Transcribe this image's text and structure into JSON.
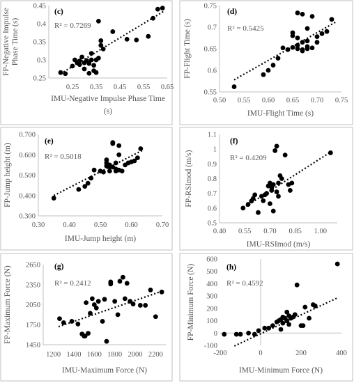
{
  "colors": {
    "point": "#000000",
    "trendline": "#000000",
    "axis": "#bfbfbf",
    "text": "#555555"
  },
  "chart_data": [
    {
      "type": "scatter",
      "panel_label": "(c)",
      "r_squared_label": "R² = 0.7269",
      "xlabel": "IMU-Negative Impulse Phase Time (s)",
      "ylabel": "FP-Negative Impulse Phase Time (s)",
      "xlim": [
        0.15,
        0.65
      ],
      "ylim": [
        0.25,
        0.45
      ],
      "xticks": [
        "0.25",
        "0.35",
        "0.45",
        "0.55",
        "0.65"
      ],
      "xtick_values": [
        0.25,
        0.35,
        0.45,
        0.55,
        0.65
      ],
      "yticks": [
        "0.25",
        "0.3",
        "0.35",
        "0.4",
        "0.45"
      ],
      "ytick_values": [
        0.25,
        0.3,
        0.35,
        0.4,
        0.45
      ],
      "trendline": [
        [
          0.2,
          0.262
        ],
        [
          0.64,
          0.436
        ]
      ],
      "legend": "none",
      "grid": false,
      "x": [
        0.2,
        0.22,
        0.25,
        0.26,
        0.27,
        0.28,
        0.28,
        0.29,
        0.3,
        0.3,
        0.31,
        0.32,
        0.32,
        0.33,
        0.33,
        0.34,
        0.34,
        0.35,
        0.35,
        0.36,
        0.36,
        0.37,
        0.37,
        0.38,
        0.42,
        0.48,
        0.52,
        0.57,
        0.59,
        0.61,
        0.63
      ],
      "y": [
        0.265,
        0.262,
        0.283,
        0.3,
        0.292,
        0.287,
        0.297,
        0.308,
        0.292,
        0.275,
        0.298,
        0.29,
        0.263,
        0.3,
        0.318,
        0.285,
        0.27,
        0.265,
        0.3,
        0.305,
        0.407,
        0.34,
        0.353,
        0.33,
        0.378,
        0.357,
        0.355,
        0.365,
        0.415,
        0.44,
        0.443
      ]
    },
    {
      "type": "scatter",
      "panel_label": "(d)",
      "r_squared_label": "R² = 0.5425",
      "xlabel": "IMU-Flight Time (s)",
      "ylabel": "FP-Flight Time (s)",
      "xlim": [
        0.5,
        0.75
      ],
      "ylim": [
        0.55,
        0.75
      ],
      "xticks": [
        "0.50",
        "0.55",
        "0.60",
        "0.65",
        "0.70",
        "0.75"
      ],
      "xtick_values": [
        0.5,
        0.55,
        0.6,
        0.65,
        0.7,
        0.75
      ],
      "yticks": [
        "0.55",
        "0.6",
        "0.65",
        "0.7",
        "0.75"
      ],
      "ytick_values": [
        0.55,
        0.6,
        0.65,
        0.7,
        0.75
      ],
      "trendline": [
        [
          0.53,
          0.578
        ],
        [
          0.74,
          0.713
        ]
      ],
      "legend": "none",
      "grid": false,
      "x": [
        0.53,
        0.59,
        0.6,
        0.61,
        0.62,
        0.63,
        0.64,
        0.65,
        0.65,
        0.65,
        0.66,
        0.66,
        0.66,
        0.67,
        0.67,
        0.67,
        0.68,
        0.68,
        0.68,
        0.69,
        0.69,
        0.7,
        0.7,
        0.71,
        0.72,
        0.73,
        0.66,
        0.67,
        0.68
      ],
      "y": [
        0.562,
        0.59,
        0.6,
        0.612,
        0.628,
        0.652,
        0.648,
        0.653,
        0.68,
        0.687,
        0.658,
        0.675,
        0.733,
        0.648,
        0.665,
        0.73,
        0.65,
        0.668,
        0.697,
        0.652,
        0.725,
        0.665,
        0.678,
        0.685,
        0.69,
        0.718,
        0.65,
        0.645,
        0.655
      ]
    },
    {
      "type": "scatter",
      "panel_label": "(e)",
      "r_squared_label": "R² = 0.5018",
      "xlabel": "IMU-Jump height (m)",
      "ylabel": "FP-Jump height (m)",
      "xlim": [
        0.3,
        0.7
      ],
      "ylim": [
        0.3,
        0.7
      ],
      "xticks": [
        "0.30",
        "0.40",
        "0.50",
        "0.60",
        "0.70"
      ],
      "xtick_values": [
        0.3,
        0.4,
        0.5,
        0.6,
        0.7
      ],
      "yticks": [
        "0.300",
        "0.400",
        "0.500",
        "0.600",
        "0.700"
      ],
      "ytick_values": [
        0.3,
        0.4,
        0.5,
        0.6,
        0.7
      ],
      "trendline": [
        [
          0.35,
          0.4
        ],
        [
          0.64,
          0.625
        ]
      ],
      "legend": "none",
      "grid": false,
      "x": [
        0.35,
        0.43,
        0.45,
        0.46,
        0.47,
        0.48,
        0.5,
        0.51,
        0.52,
        0.52,
        0.52,
        0.53,
        0.53,
        0.53,
        0.54,
        0.54,
        0.55,
        0.55,
        0.55,
        0.56,
        0.56,
        0.57,
        0.58,
        0.59,
        0.6,
        0.61,
        0.62,
        0.63,
        0.54,
        0.56
      ],
      "y": [
        0.387,
        0.43,
        0.445,
        0.46,
        0.485,
        0.525,
        0.52,
        0.515,
        0.545,
        0.575,
        0.56,
        0.52,
        0.54,
        0.55,
        0.655,
        0.66,
        0.52,
        0.53,
        0.56,
        0.6,
        0.645,
        0.52,
        0.55,
        0.56,
        0.565,
        0.57,
        0.585,
        0.63,
        0.54,
        0.525
      ]
    },
    {
      "type": "scatter",
      "panel_label": "(f)",
      "r_squared_label": "R² = 0.4209",
      "xlabel": "IMU-RSImod (m/s)",
      "ylabel": "FP-RSImod (m/s)",
      "xlim": [
        0.4,
        1.1
      ],
      "ylim": [
        0.5,
        1.1
      ],
      "xticks": [
        "0.40",
        "0.55",
        "0.70",
        "0.85",
        "1.00"
      ],
      "xtick_values": [
        0.4,
        0.55,
        0.7,
        0.85,
        1.0
      ],
      "yticks": [
        "0.5",
        "0.6",
        "0.7",
        "0.8",
        "0.9",
        "1",
        "1.1"
      ],
      "ytick_values": [
        0.5,
        0.6,
        0.7,
        0.8,
        0.9,
        1.0,
        1.1
      ],
      "trendline": [
        [
          0.54,
          0.6
        ],
        [
          1.06,
          0.98
        ]
      ],
      "legend": "none",
      "grid": false,
      "x": [
        0.54,
        0.57,
        0.59,
        0.6,
        0.61,
        0.63,
        0.65,
        0.66,
        0.67,
        0.68,
        0.69,
        0.7,
        0.7,
        0.71,
        0.72,
        0.72,
        0.73,
        0.74,
        0.74,
        0.75,
        0.76,
        0.77,
        0.79,
        0.81,
        0.82,
        0.83,
        1.06,
        0.71,
        0.75
      ],
      "y": [
        0.6,
        0.625,
        0.648,
        0.665,
        0.69,
        0.57,
        0.68,
        0.65,
        0.69,
        0.7,
        0.75,
        0.63,
        0.77,
        0.72,
        0.58,
        0.76,
        0.99,
        0.71,
        1.02,
        0.77,
        0.82,
        0.8,
        0.96,
        0.76,
        0.72,
        0.77,
        0.975,
        0.74,
        0.68
      ]
    },
    {
      "type": "scatter",
      "panel_label": "(g)",
      "r_squared_label": "R² = 0.2412",
      "xlabel": "IMU-Maximum Force (N)",
      "ylabel": "FP-Maximum Force (N)",
      "xlim": [
        1100,
        2300
      ],
      "ylim": [
        1450,
        2650
      ],
      "xticks": [
        "1200",
        "1400",
        "1600",
        "1800",
        "2000",
        "2200"
      ],
      "xtick_values": [
        1200,
        1400,
        1600,
        1800,
        2000,
        2200
      ],
      "yticks": [
        "1450",
        "1750",
        "2050",
        "2350",
        "2650"
      ],
      "ytick_values": [
        1450,
        1750,
        2050,
        2350,
        2650
      ],
      "trendline": [
        [
          1250,
          1720
        ],
        [
          2260,
          2250
        ]
      ],
      "legend": "none",
      "grid": false,
      "x": [
        1260,
        1300,
        1380,
        1440,
        1480,
        1500,
        1510,
        1520,
        1560,
        1580,
        1600,
        1640,
        1680,
        1700,
        1720,
        1760,
        1800,
        1830,
        1850,
        1880,
        1900,
        1920,
        1950,
        1980,
        2050,
        2100,
        2150,
        2200,
        2260,
        1620,
        1760,
        1540
      ],
      "y": [
        1840,
        1780,
        1800,
        1760,
        1610,
        1580,
        1580,
        2080,
        1920,
        2140,
        2050,
        2100,
        1800,
        2130,
        1500,
        2360,
        2100,
        1900,
        2400,
        2460,
        2140,
        2370,
        2100,
        2060,
        2040,
        2040,
        2270,
        1870,
        2240,
        2000,
        2390,
        1620
      ]
    },
    {
      "type": "scatter",
      "panel_label": "(h)",
      "r_squared_label": "R² = 0.4592",
      "xlabel": "IMU-Minimum Force (N)",
      "ylabel": "FP-Minimum Force (N)",
      "xlim": [
        -200,
        400
      ],
      "ylim": [
        -100,
        600
      ],
      "xticks": [
        "-200",
        "0",
        "200",
        "400"
      ],
      "xtick_values": [
        -200,
        0,
        200,
        400
      ],
      "yticks": [
        "-100",
        "0",
        "100",
        "200",
        "300",
        "400",
        "500",
        "600"
      ],
      "ytick_values": [
        -100,
        0,
        100,
        200,
        300,
        400,
        500,
        600
      ],
      "trendline": [
        [
          -130,
          -105
        ],
        [
          380,
          285
        ]
      ],
      "legend": "none",
      "grid": false,
      "x": [
        -180,
        -120,
        -100,
        -60,
        -30,
        -10,
        20,
        40,
        60,
        80,
        90,
        100,
        110,
        110,
        120,
        130,
        130,
        140,
        150,
        160,
        170,
        180,
        200,
        210,
        220,
        240,
        260,
        270,
        380,
        100,
        140
      ],
      "y": [
        -10,
        -10,
        -10,
        0,
        -10,
        20,
        40,
        40,
        60,
        90,
        100,
        110,
        80,
        130,
        120,
        100,
        170,
        140,
        120,
        130,
        150,
        390,
        60,
        60,
        210,
        120,
        230,
        220,
        560,
        30,
        70
      ]
    }
  ]
}
